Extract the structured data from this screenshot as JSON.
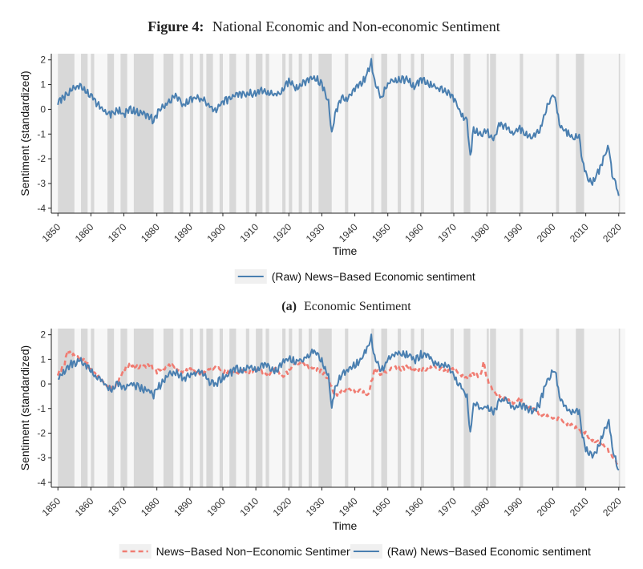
{
  "figure": {
    "label": "Figure 4:",
    "title": "National Economic and Non-economic Sentiment"
  },
  "colors": {
    "economic": "#4a7fb0",
    "noneconomic": "#f07c72",
    "recession": "#d8d8d8",
    "background": "#f7f7f7"
  },
  "chart_data": [
    {
      "type": "line",
      "caption_label": "(a)",
      "caption_text": "Economic Sentiment",
      "xlabel": "Time",
      "ylabel": "Sentiment (standardized)",
      "xlim": [
        1848,
        2022
      ],
      "ylim": [
        -4.2,
        2.25
      ],
      "x_ticks": [
        1850,
        1860,
        1870,
        1880,
        1890,
        1900,
        1910,
        1920,
        1930,
        1940,
        1950,
        1960,
        1970,
        1980,
        1990,
        2000,
        2010,
        2020
      ],
      "y_ticks": [
        -4,
        -3,
        -2,
        -1,
        0,
        1,
        2
      ],
      "grid": false,
      "legend_position": "bottom",
      "recession_periods": [
        [
          1850,
          1855
        ],
        [
          1857,
          1859
        ],
        [
          1860,
          1861
        ],
        [
          1865,
          1867
        ],
        [
          1869,
          1871
        ],
        [
          1873,
          1879
        ],
        [
          1882,
          1885
        ],
        [
          1887,
          1888
        ],
        [
          1890,
          1891
        ],
        [
          1893,
          1894
        ],
        [
          1895,
          1897
        ],
        [
          1899,
          1900
        ],
        [
          1902,
          1904
        ],
        [
          1907,
          1908
        ],
        [
          1910,
          1912
        ],
        [
          1913,
          1914
        ],
        [
          1918,
          1919
        ],
        [
          1920,
          1921
        ],
        [
          1923,
          1924
        ],
        [
          1926,
          1927
        ],
        [
          1929,
          1933
        ],
        [
          1937,
          1938
        ],
        [
          1945,
          1945.8
        ],
        [
          1948,
          1949.8
        ],
        [
          1953,
          1954
        ],
        [
          1957,
          1958
        ],
        [
          1960,
          1961
        ],
        [
          1969,
          1970
        ],
        [
          1973,
          1975
        ],
        [
          1980,
          1980.6
        ],
        [
          1981,
          1982.8
        ],
        [
          1990,
          1991
        ],
        [
          2001,
          2001.9
        ],
        [
          2007,
          2009.5
        ],
        [
          2020,
          2020.4
        ]
      ],
      "series": [
        {
          "name": "(Raw) News−Based Economic sentiment",
          "style": "solid",
          "x": [
            1850,
            1852,
            1854,
            1856,
            1857,
            1858,
            1860,
            1862,
            1864,
            1866,
            1868,
            1870,
            1872,
            1874,
            1876,
            1878,
            1879,
            1880,
            1882,
            1884,
            1886,
            1888,
            1890,
            1892,
            1894,
            1896,
            1898,
            1900,
            1902,
            1904,
            1906,
            1908,
            1910,
            1912,
            1914,
            1916,
            1918,
            1920,
            1922,
            1924,
            1926,
            1928,
            1930,
            1932,
            1933,
            1934,
            1936,
            1938,
            1940,
            1942,
            1944,
            1945,
            1946,
            1948,
            1950,
            1952,
            1954,
            1956,
            1958,
            1960,
            1962,
            1964,
            1966,
            1968,
            1970,
            1972,
            1974,
            1975,
            1976,
            1978,
            1980,
            1982,
            1984,
            1986,
            1988,
            1990,
            1992,
            1994,
            1996,
            1998,
            2000,
            2001,
            2002,
            2004,
            2006,
            2008,
            2009,
            2010,
            2012,
            2014,
            2016,
            2017,
            2018,
            2020
          ],
          "y": [
            0.3,
            0.5,
            0.8,
            0.9,
            1.0,
            0.8,
            0.6,
            0.2,
            0.0,
            -0.2,
            0.0,
            -0.2,
            0.0,
            -0.1,
            -0.2,
            -0.3,
            -0.5,
            -0.2,
            0.1,
            0.4,
            0.5,
            0.2,
            0.4,
            0.5,
            0.4,
            0.1,
            0.0,
            0.3,
            0.4,
            0.6,
            0.6,
            0.7,
            0.6,
            0.8,
            0.7,
            0.5,
            0.8,
            1.1,
            0.9,
            1.0,
            1.2,
            1.3,
            1.0,
            0.3,
            -1.0,
            -0.2,
            0.4,
            0.5,
            0.8,
            1.0,
            1.5,
            1.9,
            1.1,
            0.5,
            1.0,
            1.2,
            1.2,
            1.2,
            0.9,
            1.2,
            1.1,
            0.9,
            0.8,
            0.7,
            0.4,
            -0.1,
            -0.5,
            -2.0,
            -0.8,
            -1.0,
            -0.9,
            -1.2,
            -0.6,
            -0.7,
            -1.0,
            -0.8,
            -1.0,
            -1.1,
            -0.8,
            0.0,
            0.6,
            0.3,
            -0.6,
            -0.9,
            -1.2,
            -1.1,
            -2.1,
            -2.6,
            -3.0,
            -2.5,
            -1.8,
            -1.5,
            -2.6,
            -3.5
          ]
        }
      ]
    },
    {
      "type": "line",
      "xlabel": "Time",
      "ylabel": "Sentiment (standardized)",
      "xlim": [
        1848,
        2022
      ],
      "ylim": [
        -4.2,
        2.25
      ],
      "x_ticks": [
        1850,
        1860,
        1870,
        1880,
        1890,
        1900,
        1910,
        1920,
        1930,
        1940,
        1950,
        1960,
        1970,
        1980,
        1990,
        2000,
        2010,
        2020
      ],
      "y_ticks": [
        -4,
        -3,
        -2,
        -1,
        0,
        1,
        2
      ],
      "grid": false,
      "legend_position": "bottom",
      "series": [
        {
          "name": "News−Based Non−Economic Sentiment",
          "style": "dashed",
          "x": [
            1850,
            1852,
            1853,
            1854,
            1856,
            1858,
            1860,
            1862,
            1864,
            1866,
            1868,
            1870,
            1872,
            1874,
            1876,
            1878,
            1880,
            1882,
            1884,
            1886,
            1888,
            1890,
            1892,
            1894,
            1896,
            1898,
            1900,
            1902,
            1904,
            1906,
            1908,
            1910,
            1912,
            1914,
            1916,
            1918,
            1920,
            1922,
            1924,
            1926,
            1928,
            1930,
            1932,
            1934,
            1936,
            1938,
            1940,
            1942,
            1944,
            1946,
            1948,
            1950,
            1952,
            1954,
            1956,
            1958,
            1960,
            1962,
            1964,
            1966,
            1968,
            1970,
            1972,
            1974,
            1976,
            1978,
            1979,
            1980,
            1982,
            1984,
            1986,
            1988,
            1990,
            1992,
            1994,
            1996,
            1998,
            2000,
            2002,
            2004,
            2006,
            2008,
            2010,
            2012,
            2014,
            2016,
            2018,
            2020
          ],
          "y": [
            0.4,
            0.8,
            1.4,
            1.2,
            1.1,
            1.0,
            0.6,
            0.3,
            0.1,
            -0.2,
            0.0,
            0.6,
            0.8,
            0.7,
            0.7,
            0.8,
            0.5,
            0.6,
            0.8,
            0.6,
            0.5,
            0.6,
            0.5,
            0.4,
            0.6,
            0.7,
            0.5,
            0.5,
            0.4,
            0.6,
            0.5,
            0.6,
            0.5,
            0.4,
            0.6,
            0.3,
            0.5,
            0.9,
            0.8,
            0.7,
            0.6,
            0.5,
            0.2,
            -0.5,
            -0.3,
            -0.2,
            -0.3,
            -0.3,
            -0.5,
            0.6,
            0.4,
            0.5,
            0.7,
            0.6,
            0.7,
            0.6,
            0.6,
            0.6,
            0.7,
            0.6,
            0.5,
            0.6,
            0.4,
            0.2,
            0.4,
            0.3,
            0.9,
            0.2,
            -0.3,
            -0.5,
            -0.6,
            -0.8,
            -0.6,
            -0.9,
            -1.0,
            -1.2,
            -1.3,
            -1.4,
            -1.4,
            -1.6,
            -1.7,
            -1.9,
            -2.0,
            -2.3,
            -2.4,
            -2.6,
            -2.9,
            -3.4
          ]
        },
        {
          "name": "(Raw) News−Based Economic sentiment",
          "style": "solid",
          "x": [
            1850,
            1852,
            1854,
            1856,
            1857,
            1858,
            1860,
            1862,
            1864,
            1866,
            1868,
            1870,
            1872,
            1874,
            1876,
            1878,
            1879,
            1880,
            1882,
            1884,
            1886,
            1888,
            1890,
            1892,
            1894,
            1896,
            1898,
            1900,
            1902,
            1904,
            1906,
            1908,
            1910,
            1912,
            1914,
            1916,
            1918,
            1920,
            1922,
            1924,
            1926,
            1928,
            1930,
            1932,
            1933,
            1934,
            1936,
            1938,
            1940,
            1942,
            1944,
            1945,
            1946,
            1948,
            1950,
            1952,
            1954,
            1956,
            1958,
            1960,
            1962,
            1964,
            1966,
            1968,
            1970,
            1972,
            1974,
            1975,
            1976,
            1978,
            1980,
            1982,
            1984,
            1986,
            1988,
            1990,
            1992,
            1994,
            1996,
            1998,
            2000,
            2001,
            2002,
            2004,
            2006,
            2008,
            2009,
            2010,
            2012,
            2014,
            2016,
            2017,
            2018,
            2020
          ],
          "y": [
            0.3,
            0.5,
            0.8,
            0.9,
            1.0,
            0.8,
            0.6,
            0.2,
            0.0,
            -0.2,
            0.0,
            -0.2,
            0.0,
            -0.1,
            -0.2,
            -0.3,
            -0.5,
            -0.2,
            0.1,
            0.4,
            0.5,
            0.2,
            0.4,
            0.5,
            0.4,
            0.1,
            0.0,
            0.3,
            0.4,
            0.6,
            0.6,
            0.7,
            0.6,
            0.8,
            0.7,
            0.5,
            0.8,
            1.1,
            0.9,
            1.0,
            1.2,
            1.3,
            1.0,
            0.3,
            -1.0,
            -0.2,
            0.4,
            0.5,
            0.8,
            1.0,
            1.5,
            1.9,
            1.1,
            0.5,
            1.0,
            1.2,
            1.2,
            1.2,
            0.9,
            1.2,
            1.1,
            0.9,
            0.8,
            0.7,
            0.4,
            -0.1,
            -0.5,
            -2.0,
            -0.8,
            -1.0,
            -0.9,
            -1.2,
            -0.6,
            -0.7,
            -1.0,
            -0.8,
            -1.0,
            -1.1,
            -0.8,
            0.0,
            0.6,
            0.3,
            -0.6,
            -0.9,
            -1.2,
            -1.1,
            -2.1,
            -2.6,
            -3.0,
            -2.5,
            -1.8,
            -1.5,
            -2.6,
            -3.5
          ]
        }
      ]
    }
  ]
}
